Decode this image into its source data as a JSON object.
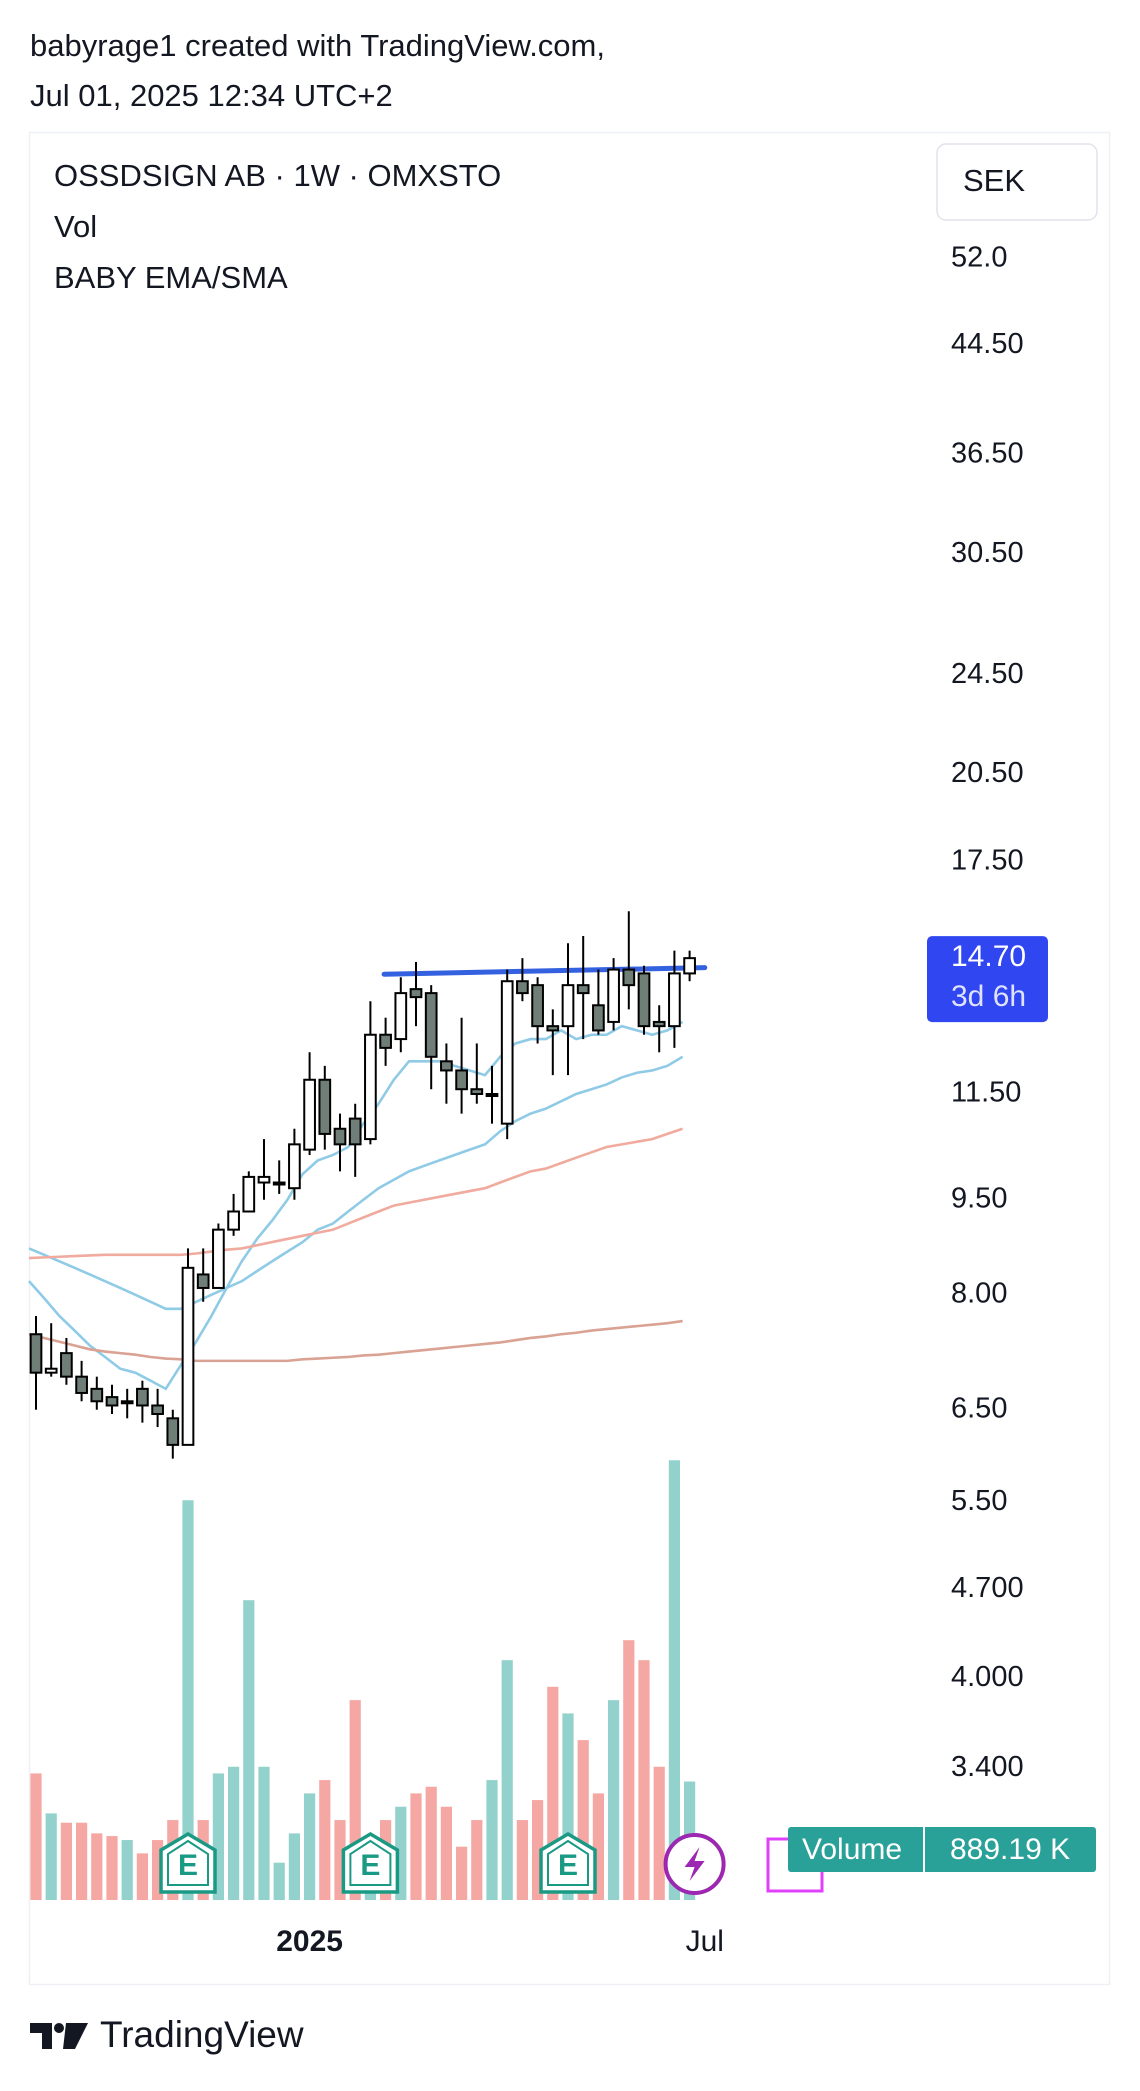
{
  "header": {
    "line1": "babyrage1 created with TradingView.com,",
    "line2": "Jul 01, 2025 12:34 UTC+2"
  },
  "footer": {
    "brand": "TradingView"
  },
  "chart_data": {
    "type": "candlestick",
    "title": "OSSDSIGN AB · 1W · OMXSTO",
    "indicators": [
      "Vol",
      "BABY EMA/SMA"
    ],
    "currency": "SEK",
    "log_scale": true,
    "ylim": [
      2.68,
      65.3
    ],
    "yticks": [
      {
        "value": 52,
        "label": "52.0"
      },
      {
        "value": 44.5,
        "label": "44.50"
      },
      {
        "value": 36.5,
        "label": "36.50"
      },
      {
        "value": 30.5,
        "label": "30.50"
      },
      {
        "value": 24.5,
        "label": "24.50"
      },
      {
        "value": 20.5,
        "label": "20.50"
      },
      {
        "value": 17.5,
        "label": "17.50"
      },
      {
        "value": 11.5,
        "label": "11.50"
      },
      {
        "value": 9.5,
        "label": "9.50"
      },
      {
        "value": 8,
        "label": "8.00"
      },
      {
        "value": 6.5,
        "label": "6.50"
      },
      {
        "value": 5.5,
        "label": "5.50"
      },
      {
        "value": 4.7,
        "label": "4.700"
      },
      {
        "value": 4,
        "label": "4.000"
      },
      {
        "value": 3.4,
        "label": "3.400"
      }
    ],
    "x_labels": [
      {
        "index": 18,
        "label": "2025"
      },
      {
        "index": 44,
        "label": "Jul"
      }
    ],
    "up_color": "#ffffff",
    "down_color": "#6f7f77",
    "open": [
      7.45,
      6.95,
      7.2,
      6.9,
      6.75,
      6.65,
      6.6,
      6.75,
      6.55,
      6.4,
      6.1,
      8.3,
      8.1,
      9.0,
      9.3,
      9.8,
      9.8,
      9.7,
      10.4,
      11.8,
      10.8,
      11.0,
      10.6,
      12.8,
      12.7,
      13.9,
      13.8,
      12.2,
      12.0,
      11.6,
      11.5,
      10.9,
      14.1,
      14.0,
      13.0,
      13.0,
      14.0,
      13.5,
      13.1,
      14.4,
      14.3,
      13.1,
      13.0,
      14.3
    ],
    "high": [
      7.7,
      7.6,
      7.4,
      7.1,
      6.9,
      6.8,
      6.75,
      6.85,
      6.75,
      6.5,
      8.7,
      8.7,
      9.1,
      9.6,
      10.0,
      10.6,
      10.2,
      10.8,
      12.4,
      12.1,
      11.1,
      11.3,
      13.6,
      13.2,
      14.2,
      14.6,
      14.0,
      12.6,
      13.2,
      12.6,
      12.1,
      14.4,
      14.7,
      14.2,
      13.4,
      15.1,
      15.3,
      14.4,
      14.7,
      16.0,
      14.5,
      13.5,
      14.9,
      14.9
    ],
    "low": [
      6.5,
      6.9,
      6.8,
      6.6,
      6.5,
      6.45,
      6.4,
      6.35,
      6.3,
      5.95,
      6.1,
      7.9,
      8.1,
      8.9,
      9.3,
      9.5,
      9.6,
      9.5,
      10.3,
      10.4,
      10.0,
      9.9,
      10.5,
      12.1,
      12.4,
      13.0,
      11.6,
      11.3,
      11.1,
      11.3,
      10.9,
      10.6,
      13.6,
      12.6,
      11.9,
      11.9,
      12.7,
      12.8,
      12.9,
      13.4,
      12.8,
      12.4,
      12.5,
      14.1
    ],
    "close": [
      6.95,
      7.0,
      6.9,
      6.7,
      6.6,
      6.55,
      6.6,
      6.55,
      6.45,
      6.1,
      8.4,
      8.1,
      9.0,
      9.3,
      9.9,
      9.9,
      9.8,
      10.5,
      11.8,
      10.7,
      10.5,
      10.5,
      12.8,
      12.5,
      13.8,
      13.7,
      12.3,
      12.0,
      11.6,
      11.5,
      11.5,
      14.1,
      13.8,
      13.0,
      12.9,
      14.0,
      13.8,
      12.9,
      14.4,
      14.0,
      13.0,
      13.0,
      14.3,
      14.7
    ],
    "moving_averages": [
      {
        "color": "#8fcbe6",
        "values": [
          8.2,
          7.95,
          7.7,
          7.5,
          7.3,
          7.15,
          7.0,
          6.95,
          6.85,
          6.75,
          7.05,
          7.35,
          7.7,
          8.1,
          8.5,
          8.85,
          9.15,
          9.5,
          9.95,
          10.2,
          10.3,
          10.45,
          10.9,
          11.3,
          11.8,
          12.2,
          12.2,
          12.2,
          12.1,
          12.0,
          11.9,
          12.3,
          12.6,
          12.7,
          12.7,
          12.9,
          12.7,
          12.8,
          12.8,
          13.0,
          12.9,
          12.8,
          12.9,
          13.1
        ]
      },
      {
        "color": "#8fcbe6",
        "values": [
          8.7,
          8.6,
          8.5,
          8.4,
          8.3,
          8.2,
          8.1,
          8.0,
          7.9,
          7.8,
          7.8,
          7.9,
          8.0,
          8.1,
          8.2,
          8.35,
          8.5,
          8.65,
          8.8,
          9.0,
          9.1,
          9.3,
          9.5,
          9.7,
          9.85,
          10.0,
          10.1,
          10.2,
          10.3,
          10.4,
          10.5,
          10.75,
          10.95,
          11.1,
          11.2,
          11.35,
          11.5,
          11.6,
          11.7,
          11.85,
          11.95,
          12.0,
          12.1,
          12.3
        ]
      },
      {
        "color": "#f0aa9e",
        "values": [
          8.55,
          8.56,
          8.57,
          8.58,
          8.59,
          8.6,
          8.6,
          8.6,
          8.6,
          8.6,
          8.6,
          8.62,
          8.65,
          8.68,
          8.7,
          8.75,
          8.8,
          8.85,
          8.9,
          8.95,
          9.0,
          9.1,
          9.2,
          9.3,
          9.4,
          9.45,
          9.5,
          9.55,
          9.6,
          9.65,
          9.7,
          9.8,
          9.9,
          10.0,
          10.05,
          10.15,
          10.25,
          10.35,
          10.45,
          10.5,
          10.55,
          10.6,
          10.7,
          10.8
        ]
      },
      {
        "color": "#d9a293",
        "values": [
          7.45,
          7.4,
          7.35,
          7.3,
          7.25,
          7.22,
          7.2,
          7.18,
          7.15,
          7.13,
          7.12,
          7.1,
          7.1,
          7.1,
          7.1,
          7.1,
          7.1,
          7.1,
          7.12,
          7.13,
          7.14,
          7.15,
          7.17,
          7.18,
          7.2,
          7.22,
          7.24,
          7.26,
          7.28,
          7.3,
          7.32,
          7.34,
          7.37,
          7.4,
          7.42,
          7.45,
          7.47,
          7.5,
          7.52,
          7.54,
          7.56,
          7.58,
          7.6,
          7.63
        ]
      }
    ],
    "trend_line": {
      "color": "#3461e0",
      "x": [
        22.9,
        44
      ],
      "y": [
        14.28,
        14.45
      ]
    },
    "price_label": {
      "value": 14.7,
      "label": "14.70",
      "countdown": "3d 6h",
      "color": "#2f46f0"
    },
    "volume": {
      "name": "Volume",
      "up_color": "#93d2cc",
      "down_color": "#f5a8a3",
      "ylim": [
        0,
        4000
      ],
      "values": [
        950,
        650,
        580,
        580,
        500,
        480,
        450,
        350,
        450,
        600,
        3000,
        600,
        950,
        1000,
        2250,
        1000,
        280,
        500,
        800,
        900,
        600,
        1500,
        450,
        600,
        700,
        800,
        850,
        700,
        400,
        600,
        900,
        1800,
        600,
        750,
        1600,
        1400,
        1200,
        800,
        1500,
        1950,
        1800,
        1000,
        3300,
        889.19
      ],
      "value_labels": {
        "43": "889.19 K"
      },
      "label_color": "#2aa198"
    },
    "events": [
      {
        "index": 10,
        "label": "E"
      },
      {
        "index": 22,
        "label": "E"
      },
      {
        "index": 35,
        "label": "E"
      }
    ]
  }
}
